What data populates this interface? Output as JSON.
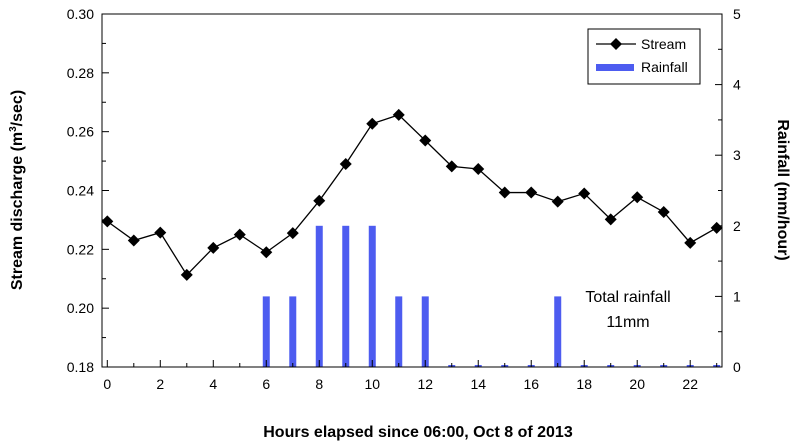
{
  "chart_data": {
    "type": "bar+line",
    "title": "",
    "xlabel": "Hours elapsed since 06:00, Oct 8 of 2013",
    "ylabel_left": "Stream discharge (m³/sec)",
    "ylabel_left_main": "Stream discharge (m",
    "ylabel_left_sup": "3",
    "ylabel_left_tail": "/sec)",
    "ylabel_right": "Rainfall (mm/hour)",
    "xlim": [
      -0.2,
      23.2
    ],
    "ylim_left": [
      0.18,
      0.3
    ],
    "ylim_right": [
      0,
      5
    ],
    "x_ticks": [
      0,
      2,
      4,
      6,
      8,
      10,
      12,
      14,
      16,
      18,
      20,
      22
    ],
    "y_left_ticks": [
      "0.18",
      "0.20",
      "0.22",
      "0.24",
      "0.26",
      "0.28",
      "0.30"
    ],
    "y_right_ticks": [
      "0",
      "1",
      "2",
      "3",
      "4",
      "5"
    ],
    "series": [
      {
        "name": "Stream",
        "axis": "left",
        "kind": "line",
        "marker": "diamond",
        "color": "#000000",
        "x": [
          0,
          1,
          2,
          3,
          4,
          5,
          6,
          7,
          8,
          9,
          10,
          11,
          12,
          13,
          14,
          15,
          16,
          17,
          18,
          19,
          20,
          21,
          22,
          23
        ],
        "values": [
          0.2295,
          0.223,
          0.2257,
          0.2113,
          0.2205,
          0.225,
          0.219,
          0.2255,
          0.2365,
          0.249,
          0.2627,
          0.2657,
          0.257,
          0.2482,
          0.2473,
          0.2393,
          0.2393,
          0.2362,
          0.239,
          0.2302,
          0.2377,
          0.2327,
          0.2222,
          0.2273
        ]
      },
      {
        "name": "Rainfall",
        "axis": "right",
        "kind": "bar",
        "color": "#4d5cf0",
        "x": [
          6,
          7,
          8,
          9,
          10,
          11,
          12,
          13,
          14,
          15,
          16,
          17,
          18,
          19,
          20,
          21,
          22,
          23
        ],
        "values": [
          1,
          1,
          2,
          2,
          2,
          1,
          1,
          0,
          0,
          0,
          0,
          1,
          0,
          0,
          0,
          0,
          0,
          0
        ]
      }
    ],
    "legend": {
      "position": "top-right",
      "entries": [
        "Stream",
        "Rainfall"
      ]
    },
    "annotation": {
      "line1": "Total rainfall",
      "line2": "11mm"
    }
  }
}
